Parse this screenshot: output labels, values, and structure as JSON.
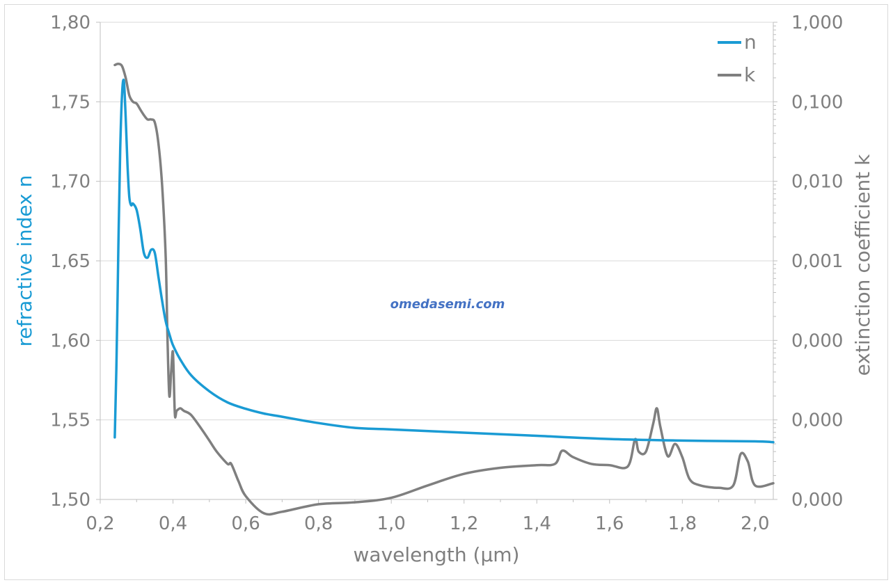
{
  "chart_data": {
    "type": "line",
    "xlabel": "wavelength (µm)",
    "ylabel_left": "refractive index n",
    "ylabel_right": "extinction coefficient k",
    "xlim": [
      0.2,
      2.05
    ],
    "ylim_left": [
      1.5,
      1.8
    ],
    "ylim_right": [
      1e-06,
      1.0
    ],
    "right_axis_scale": "log",
    "x_ticks": [
      "0,2",
      "0,4",
      "0,6",
      "0,8",
      "1,0",
      "1,2",
      "1,4",
      "1,6",
      "1,8",
      "2,0"
    ],
    "y_left_ticks": [
      "1,50",
      "1,55",
      "1,60",
      "1,65",
      "1,70",
      "1,75",
      "1,80"
    ],
    "y_right_ticks": [
      "0,000",
      "0,000",
      "0,000",
      "0,001",
      "0,010",
      "0,100",
      "1,000"
    ],
    "grid": "horizontal",
    "legend_position": "top-right",
    "watermark": "omedasemi.com",
    "colors": {
      "n": "#1a9bd4",
      "k": "#7f7f7f",
      "watermark": "#4472c4",
      "axis": "#d9d9d9",
      "text": "#7f7f7f"
    },
    "series": [
      {
        "name": "n",
        "axis": "left",
        "x": [
          0.24,
          0.245,
          0.25,
          0.255,
          0.26,
          0.265,
          0.27,
          0.275,
          0.28,
          0.285,
          0.29,
          0.3,
          0.31,
          0.32,
          0.33,
          0.34,
          0.35,
          0.36,
          0.37,
          0.38,
          0.39,
          0.4,
          0.42,
          0.45,
          0.5,
          0.55,
          0.6,
          0.65,
          0.7,
          0.8,
          0.9,
          1.0,
          1.2,
          1.4,
          1.6,
          1.8,
          2.0,
          2.05
        ],
        "values": [
          1.539,
          1.59,
          1.66,
          1.72,
          1.755,
          1.763,
          1.74,
          1.71,
          1.69,
          1.685,
          1.686,
          1.682,
          1.67,
          1.655,
          1.652,
          1.657,
          1.655,
          1.64,
          1.625,
          1.612,
          1.604,
          1.597,
          1.588,
          1.578,
          1.568,
          1.561,
          1.557,
          1.554,
          1.552,
          1.548,
          1.545,
          1.544,
          1.542,
          1.54,
          1.538,
          1.537,
          1.5365,
          1.536
        ]
      },
      {
        "name": "k",
        "axis": "right",
        "x": [
          0.24,
          0.25,
          0.26,
          0.27,
          0.28,
          0.29,
          0.3,
          0.31,
          0.32,
          0.33,
          0.34,
          0.35,
          0.36,
          0.37,
          0.38,
          0.385,
          0.39,
          0.395,
          0.4,
          0.405,
          0.41,
          0.42,
          0.43,
          0.45,
          0.48,
          0.5,
          0.52,
          0.55,
          0.56,
          0.58,
          0.6,
          0.65,
          0.7,
          0.8,
          0.9,
          1.0,
          1.1,
          1.2,
          1.3,
          1.4,
          1.45,
          1.47,
          1.5,
          1.55,
          1.6,
          1.65,
          1.67,
          1.68,
          1.7,
          1.72,
          1.73,
          1.74,
          1.76,
          1.78,
          1.8,
          1.82,
          1.85,
          1.9,
          1.94,
          1.96,
          1.98,
          2.0,
          2.05
        ],
        "values": [
          0.29,
          0.3,
          0.28,
          0.2,
          0.12,
          0.1,
          0.095,
          0.08,
          0.068,
          0.06,
          0.06,
          0.055,
          0.03,
          0.009,
          0.0011,
          0.0001,
          2e-05,
          4e-05,
          7e-05,
          1.2e-05,
          1.3e-05,
          1.4e-05,
          1.3e-05,
          1.15e-05,
          7.5e-06,
          5.5e-06,
          4e-06,
          2.8e-06,
          2.8e-06,
          1.7e-06,
          1.1e-06,
          6.7e-07,
          7e-07,
          8.7e-07,
          9.2e-07,
          1.05e-06,
          1.5e-06,
          2.1e-06,
          2.5e-06,
          2.7e-06,
          2.8e-06,
          4.1e-06,
          3.4e-06,
          2.8e-06,
          2.7e-06,
          2.6e-06,
          5.7e-06,
          4e-06,
          4e-06,
          9e-06,
          1.4e-05,
          8e-06,
          3.5e-06,
          5e-06,
          3.4e-06,
          1.8e-06,
          1.5e-06,
          1.4e-06,
          1.5e-06,
          3.7e-06,
          3e-06,
          1.5e-06,
          1.6e-06
        ]
      }
    ]
  }
}
